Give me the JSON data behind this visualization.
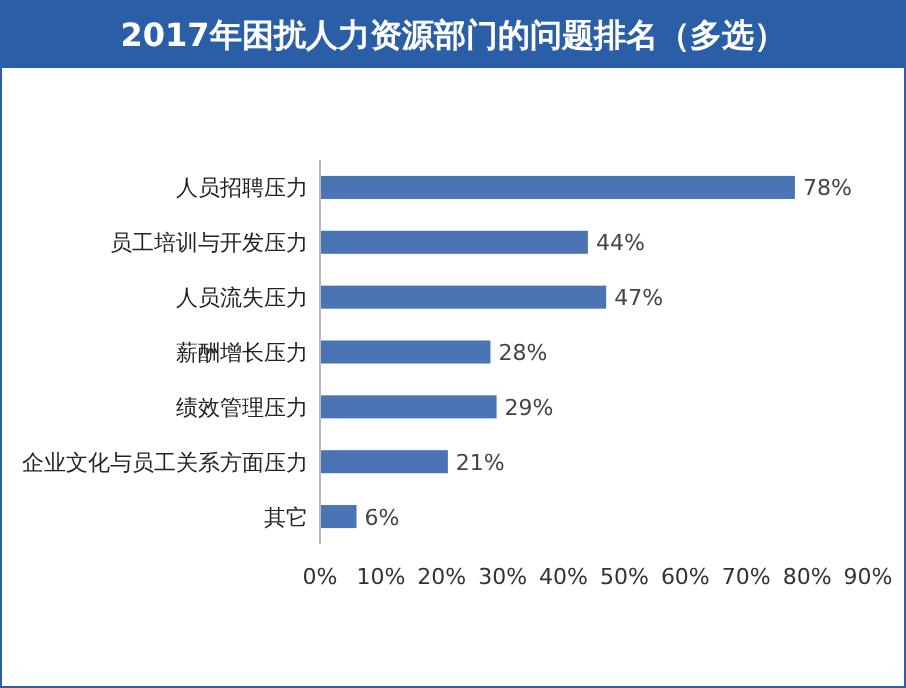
{
  "chart_data": {
    "type": "bar",
    "orientation": "horizontal",
    "title": "2017年困扰人力资源部门的问题排名（多选）",
    "categories": [
      "人员招聘压力",
      "员工培训与开发压力",
      "人员流失压力",
      "薪酬增长压力",
      "绩效管理压力",
      "企业文化与员工关系方面压力",
      "其它"
    ],
    "values": [
      78,
      44,
      47,
      28,
      29,
      21,
      6
    ],
    "value_labels": [
      "78%",
      "44%",
      "47%",
      "28%",
      "29%",
      "21%",
      "6%"
    ],
    "color": "#4a74b4",
    "xlim": [
      0,
      90
    ],
    "xticks": [
      {
        "value": 0,
        "label": "0%"
      },
      {
        "value": 10,
        "label": "10%"
      },
      {
        "value": 20,
        "label": "20%"
      },
      {
        "value": 30,
        "label": "30%"
      },
      {
        "value": 40,
        "label": "40%"
      },
      {
        "value": 50,
        "label": "50%"
      },
      {
        "value": 60,
        "label": "60%"
      },
      {
        "value": 70,
        "label": "70%"
      },
      {
        "value": 80,
        "label": "80%"
      },
      {
        "value": 90,
        "label": "90%"
      }
    ],
    "grid": false
  }
}
